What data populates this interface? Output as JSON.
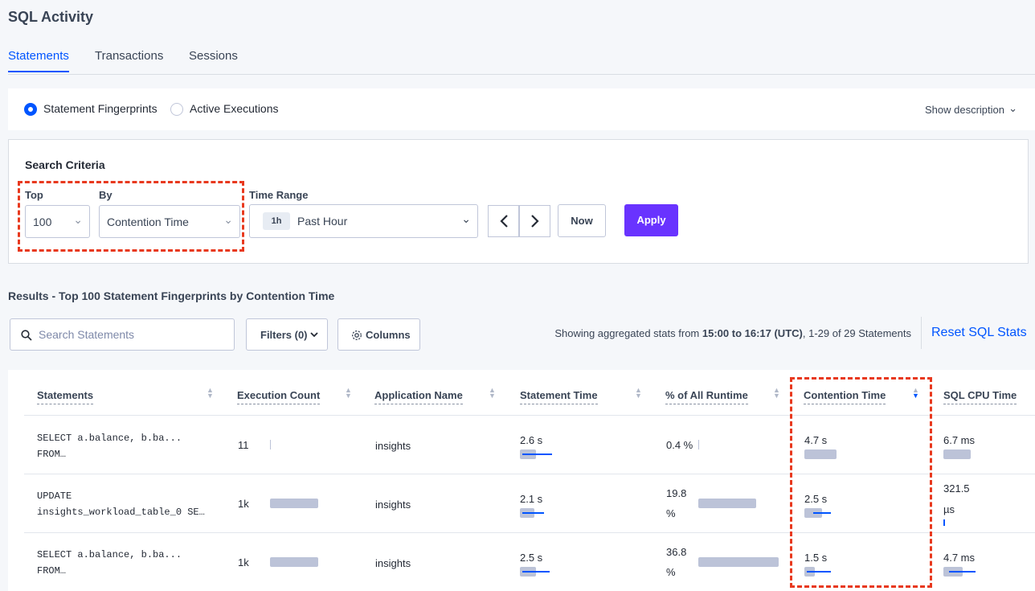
{
  "page": {
    "title": "SQL Activity"
  },
  "tabs": [
    "Statements",
    "Transactions",
    "Sessions"
  ],
  "view": {
    "options": [
      "Statement Fingerprints",
      "Active Executions"
    ],
    "selected": "Statement Fingerprints",
    "show_description": "Show description"
  },
  "criteria": {
    "heading": "Search Criteria",
    "top_label": "Top",
    "top_value": "100",
    "by_label": "By",
    "by_value": "Contention Time",
    "time_range_label": "Time Range",
    "time_range_tag": "1h",
    "time_range_value": "Past Hour",
    "now_label": "Now",
    "apply_label": "Apply"
  },
  "results": {
    "title": "Results - Top 100 Statement Fingerprints by Contention Time",
    "search_placeholder": "Search Statements",
    "filters_label": "Filters (0)",
    "columns_label": "Columns",
    "showing_prefix": "Showing aggregated stats from ",
    "showing_range": "15:00 to 16:17 (UTC)",
    "showing_suffix": ", 1-29 of 29 Statements",
    "reset_label": "Reset SQL Stats"
  },
  "table": {
    "headers": [
      "Statements",
      "Execution Count",
      "Application Name",
      "Statement Time",
      "% of All Runtime",
      "Contention Time",
      "SQL CPU Time"
    ],
    "rows": [
      {
        "stmt_line1": "SELECT a.balance, b.ba...",
        "stmt_line2": "FROM…",
        "exec_count": "11",
        "app": "insights",
        "stmt_time": "2.6 s",
        "pct_line1": "0.4 %",
        "pct_line2": "",
        "contention": "4.7 s",
        "cpu_line1": "6.7 ms",
        "cpu_line2": ""
      },
      {
        "stmt_line1": "UPDATE",
        "stmt_line2": "insights_workload_table_0 SE…",
        "exec_count": "1k",
        "app": "insights",
        "stmt_time": "2.1 s",
        "pct_line1": "19.8",
        "pct_line2": "%",
        "contention": "2.5 s",
        "cpu_line1": "321.5",
        "cpu_line2": "µs"
      },
      {
        "stmt_line1": "SELECT a.balance, b.ba...",
        "stmt_line2": "FROM…",
        "exec_count": "1k",
        "app": "insights",
        "stmt_time": "2.5 s",
        "pct_line1": "36.8",
        "pct_line2": "%",
        "contention": "1.5 s",
        "cpu_line1": "4.7 ms",
        "cpu_line2": ""
      }
    ]
  },
  "colors": {
    "accent": "#0055ff",
    "apply": "#6933ff",
    "highlight": "#e8391e"
  },
  "icons": [
    "search-icon",
    "gear-icon",
    "chevron-down-icon",
    "chevron-left-icon",
    "chevron-right-icon",
    "sort-icon"
  ]
}
